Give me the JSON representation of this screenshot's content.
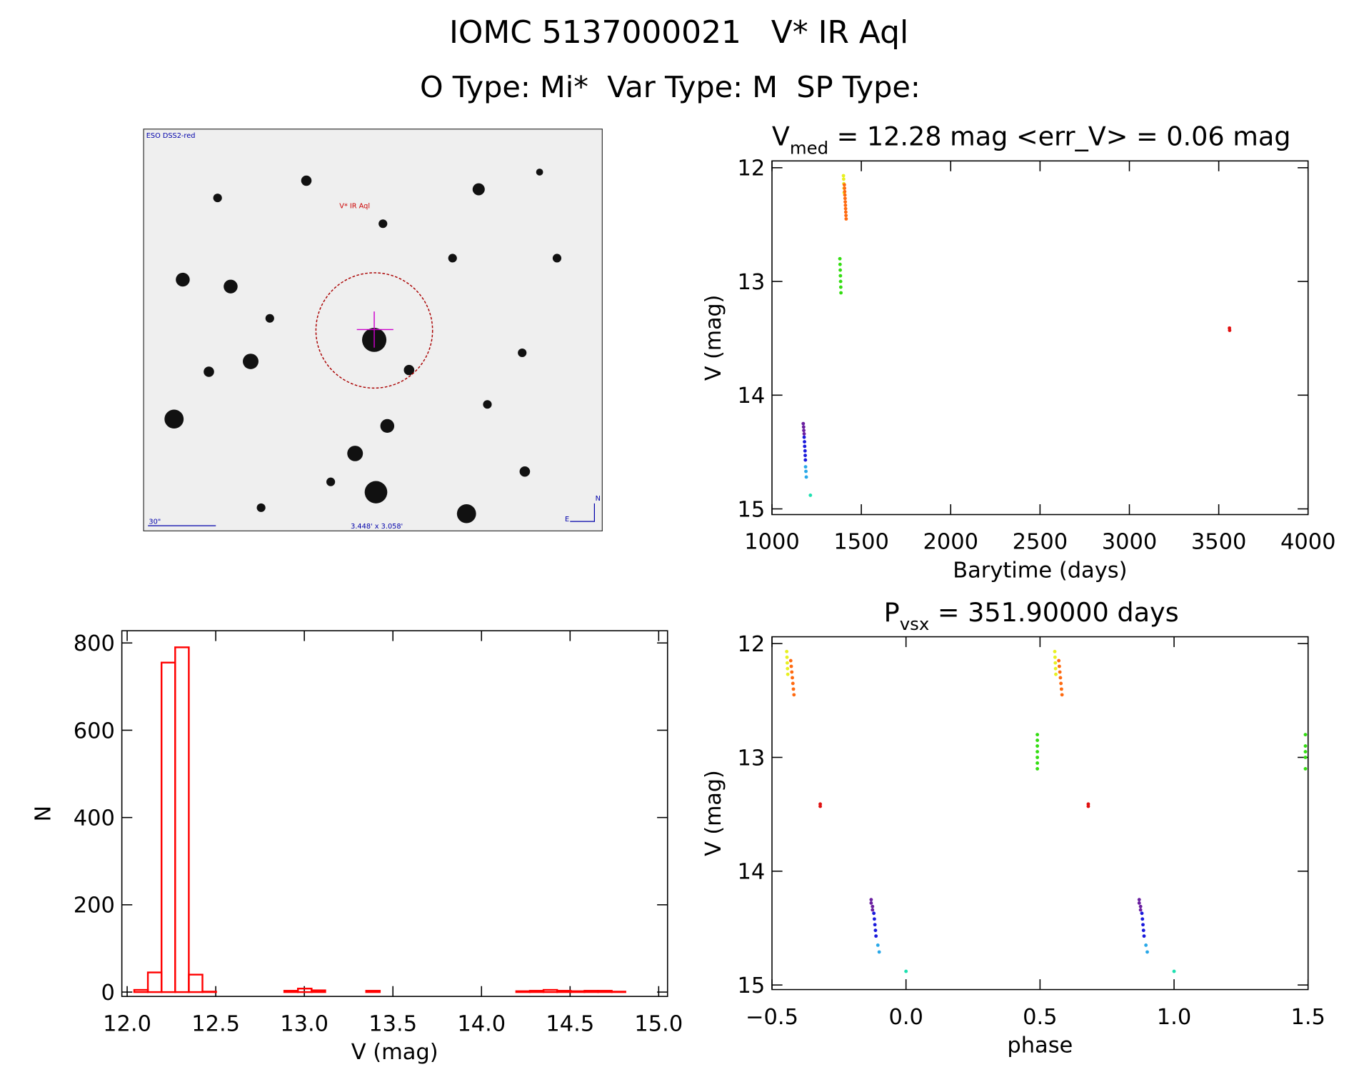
{
  "header": {
    "title": "IOMC 5137000021   V* IR Aql",
    "subtitle": "O Type: Mi*  Var Type: M  SP Type:"
  },
  "image": {
    "source": "ESO DSS2-red",
    "target": "V* IR Aql",
    "scale": "30\"",
    "size": "3.448' x 3.058'",
    "north": "N",
    "east": "E"
  },
  "chart_data": [
    {
      "type": "scatter",
      "title": [
        "V",
        "med",
        " = 12.28 mag <err_V> = 0.06 mag"
      ],
      "xlabel": "Barytime (days)",
      "ylabel": "V (mag)",
      "xlim": [
        1000,
        4000
      ],
      "xticks": [
        1000,
        1500,
        2000,
        2500,
        3000,
        3500,
        4000
      ],
      "ylim": [
        11.94,
        15.05
      ],
      "yticks": [
        12,
        13,
        14,
        15
      ],
      "y_inverted": true,
      "series": [
        {
          "color": "#6a1fa0",
          "x": [
            1175,
            1177,
            1178,
            1180
          ],
          "values": [
            14.25,
            14.28,
            14.31,
            14.34
          ]
        },
        {
          "color": "#1a1adc",
          "x": [
            1180,
            1182,
            1183,
            1185,
            1186,
            1187
          ],
          "values": [
            14.37,
            14.41,
            14.45,
            14.49,
            14.53,
            14.57
          ]
        },
        {
          "color": "#29a8e8",
          "x": [
            1188,
            1190,
            1192
          ],
          "values": [
            14.63,
            14.67,
            14.72
          ]
        },
        {
          "color": "#1de0b0",
          "x": [
            1215
          ],
          "values": [
            14.88
          ]
        },
        {
          "color": "#33dd11",
          "x": [
            1380,
            1381,
            1382,
            1383,
            1384,
            1385,
            1386
          ],
          "values": [
            12.8,
            12.85,
            12.9,
            12.95,
            13.0,
            13.05,
            13.1
          ]
        },
        {
          "color": "#e8f020",
          "x": [
            1400,
            1401,
            1402,
            1403,
            1404
          ],
          "values": [
            12.07,
            12.1,
            12.14,
            12.18,
            12.22
          ]
        },
        {
          "color": "#ff6a10",
          "x": [
            1405,
            1406,
            1407,
            1408,
            1409,
            1410,
            1411,
            1412,
            1413,
            1414,
            1415
          ],
          "values": [
            12.15,
            12.18,
            12.21,
            12.24,
            12.27,
            12.3,
            12.33,
            12.36,
            12.39,
            12.42,
            12.45
          ]
        },
        {
          "color": "#e01010",
          "x": [
            3560,
            3561
          ],
          "values": [
            13.41,
            13.43
          ]
        }
      ]
    },
    {
      "type": "scatter",
      "title": [
        "P",
        "vsx",
        " = 351.90000 days"
      ],
      "xlabel": "phase",
      "ylabel": "V (mag)",
      "xlim": [
        -0.5,
        1.5
      ],
      "xticks": [
        {
          "value": -0.5,
          "label": "−0.5"
        },
        {
          "value": 0,
          "label": "0.0"
        },
        0.5,
        {
          "value": 1,
          "label": "1.0"
        },
        1.5
      ],
      "ylim": [
        11.94,
        15.04
      ],
      "yticks": [
        12,
        13,
        14,
        15
      ],
      "y_inverted": true,
      "series": [
        {
          "color": "#6a1fa0",
          "x": [
            -0.13,
            -0.13,
            -0.125,
            -0.125,
            0.87,
            0.87,
            0.875,
            0.875
          ],
          "values": [
            14.25,
            14.28,
            14.31,
            14.34,
            14.25,
            14.28,
            14.31,
            14.34
          ]
        },
        {
          "color": "#1a1adc",
          "x": [
            -0.12,
            -0.118,
            -0.116,
            -0.114,
            -0.112,
            0.88,
            0.882,
            0.884,
            0.886,
            0.888
          ],
          "values": [
            14.37,
            14.42,
            14.47,
            14.52,
            14.57,
            14.37,
            14.42,
            14.47,
            14.52,
            14.57
          ]
        },
        {
          "color": "#29a8e8",
          "x": [
            -0.105,
            -0.1,
            0.895,
            0.9
          ],
          "values": [
            14.65,
            14.71,
            14.65,
            14.71
          ]
        },
        {
          "color": "#1de0b0",
          "x": [
            0.0,
            1.0
          ],
          "values": [
            14.88,
            14.88
          ]
        },
        {
          "color": "#33dd11",
          "x": [
            0.49,
            0.49,
            0.49,
            0.49,
            0.49,
            0.49,
            0.49,
            1.49,
            1.49,
            1.49,
            1.49,
            1.49
          ],
          "values": [
            12.8,
            12.85,
            12.9,
            12.95,
            13.0,
            13.05,
            13.1,
            12.8,
            12.9,
            12.95,
            13.0,
            13.1
          ]
        },
        {
          "color": "#e8f020",
          "x": [
            -0.445,
            -0.444,
            -0.443,
            -0.442,
            -0.441,
            0.555,
            0.556,
            0.557,
            0.558,
            0.559
          ],
          "values": [
            12.07,
            12.12,
            12.17,
            12.22,
            12.27,
            12.07,
            12.12,
            12.17,
            12.22,
            12.27
          ]
        },
        {
          "color": "#ff6a10",
          "x": [
            -0.43,
            -0.428,
            -0.426,
            -0.424,
            -0.422,
            -0.42,
            -0.418,
            0.57,
            0.572,
            0.574,
            0.576,
            0.578,
            0.58,
            0.582
          ],
          "values": [
            12.15,
            12.2,
            12.25,
            12.3,
            12.35,
            12.4,
            12.45,
            12.15,
            12.2,
            12.25,
            12.3,
            12.35,
            12.4,
            12.45
          ]
        },
        {
          "color": "#e01010",
          "x": [
            -0.32,
            -0.32,
            0.68,
            0.68
          ],
          "values": [
            13.41,
            13.43,
            13.41,
            13.43
          ]
        }
      ]
    },
    {
      "type": "histogram",
      "xlabel": "V (mag)",
      "ylabel": "N",
      "color": "#ff0000",
      "xlim": [
        11.97,
        15.05
      ],
      "xticks": [
        {
          "value": 12,
          "label": "12.0"
        },
        12.5,
        {
          "value": 13,
          "label": "13.0"
        },
        13.5,
        {
          "value": 14,
          "label": "14.0"
        },
        14.5,
        {
          "value": 15,
          "label": "15.0"
        }
      ],
      "ylim": [
        -10,
        828
      ],
      "yticks": [
        0,
        200,
        400,
        600,
        800
      ],
      "bins": [
        12.04,
        12.117,
        12.194,
        12.271,
        12.348,
        12.425,
        12.502,
        12.579,
        12.656,
        12.733,
        12.81,
        12.887,
        12.964,
        13.041,
        13.118,
        13.195,
        13.272,
        13.349,
        13.426,
        13.503,
        13.58,
        13.657,
        13.734,
        13.811,
        13.888,
        13.965,
        14.042,
        14.119,
        14.196,
        14.273,
        14.35,
        14.427,
        14.504,
        14.581,
        14.658,
        14.735,
        14.812,
        14.889
      ],
      "values": [
        5,
        45,
        755,
        790,
        40,
        1,
        0,
        0,
        0,
        0,
        0,
        3,
        8,
        4,
        0,
        0,
        0,
        3,
        0,
        0,
        0,
        0,
        0,
        0,
        0,
        0,
        0,
        0,
        2,
        3,
        5,
        3,
        2,
        3,
        3,
        1,
        0
      ]
    }
  ]
}
